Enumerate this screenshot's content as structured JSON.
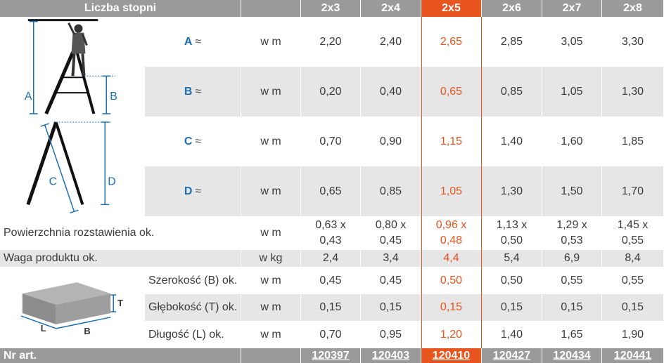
{
  "header": {
    "title": "Liczba stopni",
    "sizes": [
      "2x3",
      "2x4",
      "2x5",
      "2x6",
      "2x7",
      "2x8"
    ]
  },
  "dimension_rows": [
    {
      "label": "A",
      "approx": "≈",
      "unit": "w m",
      "values": [
        "2,20",
        "2,40",
        "2,65",
        "2,85",
        "3,05",
        "3,30"
      ]
    },
    {
      "label": "B",
      "approx": "≈",
      "unit": "w m",
      "values": [
        "0,20",
        "0,40",
        "0,65",
        "0,85",
        "1,05",
        "1,30"
      ]
    },
    {
      "label": "C",
      "approx": "≈",
      "unit": "w m",
      "values": [
        "0,70",
        "0,90",
        "1,15",
        "1,40",
        "1,60",
        "1,85"
      ]
    },
    {
      "label": "D",
      "approx": "≈",
      "unit": "w m",
      "values": [
        "0,65",
        "0,85",
        "1,05",
        "1,30",
        "1,50",
        "1,70"
      ]
    }
  ],
  "footprint": {
    "label": "Powierzchnia rozstawienia ok.",
    "unit": "w m",
    "values_top": [
      "0,63 x",
      "0,80 x",
      "0,96 x",
      "1,13 x",
      "1,29 x",
      "1,45 x"
    ],
    "values_bottom": [
      "0,43",
      "0,45",
      "0,48",
      "0,50",
      "0,53",
      "0,55"
    ]
  },
  "weight": {
    "label": "Waga produktu ok.",
    "unit": "w kg",
    "values": [
      "2,4",
      "3,4",
      "4,4",
      "5,4",
      "6,9",
      "8,4"
    ]
  },
  "package_rows": [
    {
      "label": "Szerokość (B) ok.",
      "unit": "w m",
      "values": [
        "0,45",
        "0,45",
        "0,50",
        "0,50",
        "0,55",
        "0,55"
      ]
    },
    {
      "label": "Głębokość (T) ok.",
      "unit": "w m",
      "values": [
        "0,15",
        "0,15",
        "0,15",
        "0,15",
        "0,15",
        "0,15"
      ]
    },
    {
      "label": "Długość (L) ok.",
      "unit": "w m",
      "values": [
        "0,70",
        "0,95",
        "1,20",
        "1,40",
        "1,65",
        "1,90"
      ]
    }
  ],
  "footer": {
    "label": "Nr art.",
    "articles": [
      "120397",
      "120403",
      "120410",
      "120427",
      "120434",
      "120441"
    ]
  },
  "illustration_labels": {
    "a": "A",
    "b": "B",
    "c": "C",
    "d": "D",
    "t": "T",
    "l": "L",
    "b2": "B"
  },
  "colors": {
    "header_gray": "#9a9a9a",
    "row_gray": "#e6e6e6",
    "highlight": "#e8541e",
    "label_blue": "#1a6fb5"
  },
  "highlight_column_index": 2
}
